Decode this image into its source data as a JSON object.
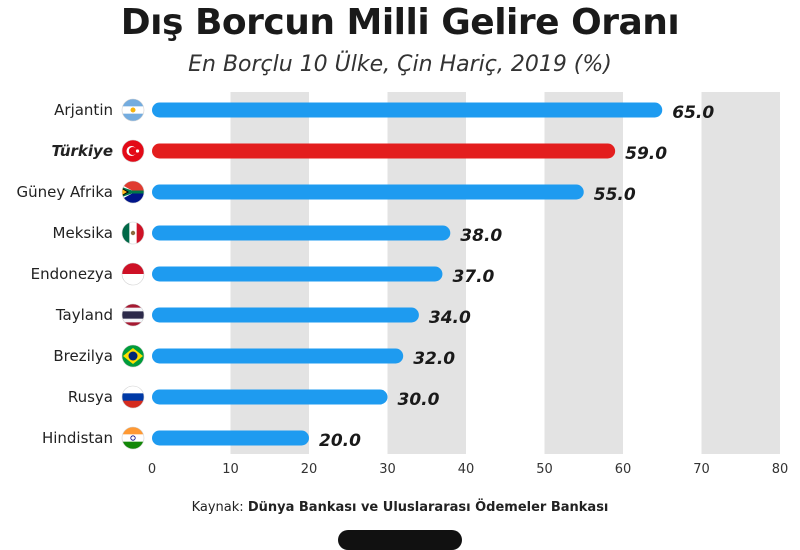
{
  "header": {
    "title": "Dış Borcun Milli Gelire Oranı",
    "subtitle": "En Borçlu 10 Ülke, Çin Hariç, 2019 (%)"
  },
  "source": {
    "label": "Kaynak:",
    "text": "Dünya Bankası ve Uluslararası Ödemeler Bankası"
  },
  "colors": {
    "default_bar": "#1E9BF0",
    "highlight_bar": "#E31E1E",
    "grid_band": "#E3E3E3"
  },
  "chart_data": {
    "type": "bar",
    "orientation": "horizontal",
    "title": "Dış Borcun Milli Gelire Oranı",
    "subtitle": "En Borçlu 10 Ülke, Çin Hariç, 2019 (%)",
    "categories": [
      "Arjantin",
      "Türkiye",
      "Güney Afrika",
      "Meksika",
      "Endonezya",
      "Tayland",
      "Brezilya",
      "Rusya",
      "Hindistan"
    ],
    "values": [
      65.0,
      59.0,
      55.0,
      38.0,
      37.0,
      34.0,
      32.0,
      30.0,
      20.0
    ],
    "value_labels": [
      "65.0",
      "59.0",
      "55.0",
      "38.0",
      "37.0",
      "34.0",
      "32.0",
      "30.0",
      "20.0"
    ],
    "highlight": "Türkiye",
    "flag_icons": [
      "argentina-flag-icon",
      "turkey-flag-icon",
      "south-africa-flag-icon",
      "mexico-flag-icon",
      "indonesia-flag-icon",
      "thailand-flag-icon",
      "brazil-flag-icon",
      "russia-flag-icon",
      "india-flag-icon"
    ],
    "xlim": [
      0,
      80
    ],
    "xticks": [
      "0",
      "10",
      "20",
      "30",
      "40",
      "50",
      "60",
      "70",
      "80"
    ],
    "grid": "alternating vertical bands",
    "xlabel": "",
    "ylabel": ""
  }
}
